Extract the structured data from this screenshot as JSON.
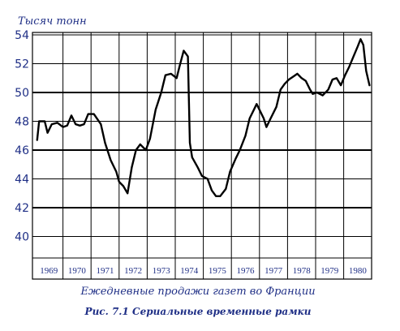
{
  "chart_data": {
    "type": "line",
    "title": "Рис. 7.1 Сериальные временные рамки",
    "subtitle": "Ежедневные продажи газет во Франции",
    "ylabel": "Тысяч тонн",
    "xlabel": "",
    "ylim": [
      38,
      54
    ],
    "yticks": [
      40,
      42,
      44,
      46,
      48,
      50,
      52,
      54
    ],
    "grid": true,
    "legend": "none",
    "categories": [
      "1969",
      "1970",
      "1971",
      "1972",
      "1973",
      "1974",
      "1975",
      "1976",
      "1977",
      "1978",
      "1979",
      "1980"
    ],
    "xlim": [
      1969,
      1981
    ],
    "series": [
      {
        "name": "",
        "color": "#000000",
        "points": [
          [
            1969.08,
            46.7
          ],
          [
            1969.15,
            48.0
          ],
          [
            1969.35,
            48.0
          ],
          [
            1969.45,
            47.2
          ],
          [
            1969.6,
            47.8
          ],
          [
            1969.8,
            47.9
          ],
          [
            1970.0,
            47.6
          ],
          [
            1970.15,
            47.7
          ],
          [
            1970.3,
            48.4
          ],
          [
            1970.45,
            47.8
          ],
          [
            1970.6,
            47.7
          ],
          [
            1970.75,
            47.8
          ],
          [
            1970.9,
            48.5
          ],
          [
            1971.1,
            48.5
          ],
          [
            1971.35,
            47.8
          ],
          [
            1971.5,
            46.5
          ],
          [
            1971.7,
            45.3
          ],
          [
            1971.9,
            44.5
          ],
          [
            1972.0,
            43.8
          ],
          [
            1972.15,
            43.5
          ],
          [
            1972.3,
            43.0
          ],
          [
            1972.45,
            44.8
          ],
          [
            1972.6,
            46.0
          ],
          [
            1972.75,
            46.4
          ],
          [
            1972.95,
            46.0
          ],
          [
            1973.1,
            46.8
          ],
          [
            1973.3,
            48.8
          ],
          [
            1973.5,
            50.0
          ],
          [
            1973.65,
            51.2
          ],
          [
            1973.85,
            51.3
          ],
          [
            1974.05,
            51.0
          ],
          [
            1974.15,
            51.8
          ],
          [
            1974.3,
            52.9
          ],
          [
            1974.45,
            52.5
          ],
          [
            1974.52,
            46.5
          ],
          [
            1974.6,
            45.5
          ],
          [
            1974.8,
            44.8
          ],
          [
            1974.95,
            44.2
          ],
          [
            1975.15,
            44.0
          ],
          [
            1975.3,
            43.2
          ],
          [
            1975.45,
            42.8
          ],
          [
            1975.6,
            42.8
          ],
          [
            1975.8,
            43.3
          ],
          [
            1975.95,
            44.5
          ],
          [
            1976.15,
            45.4
          ],
          [
            1976.3,
            46.0
          ],
          [
            1976.5,
            47.0
          ],
          [
            1976.65,
            48.2
          ],
          [
            1976.8,
            48.8
          ],
          [
            1976.9,
            49.2
          ],
          [
            1977.0,
            48.8
          ],
          [
            1977.15,
            48.2
          ],
          [
            1977.25,
            47.6
          ],
          [
            1977.4,
            48.2
          ],
          [
            1977.6,
            49.0
          ],
          [
            1977.75,
            50.2
          ],
          [
            1977.9,
            50.6
          ],
          [
            1978.05,
            50.9
          ],
          [
            1978.2,
            51.1
          ],
          [
            1978.35,
            51.3
          ],
          [
            1978.5,
            51.0
          ],
          [
            1978.65,
            50.8
          ],
          [
            1978.8,
            50.2
          ],
          [
            1978.9,
            49.9
          ],
          [
            1979.05,
            50.0
          ],
          [
            1979.25,
            49.8
          ],
          [
            1979.45,
            50.2
          ],
          [
            1979.6,
            50.9
          ],
          [
            1979.75,
            51.0
          ],
          [
            1979.9,
            50.5
          ],
          [
            1980.05,
            51.2
          ],
          [
            1980.2,
            51.8
          ],
          [
            1980.35,
            52.5
          ],
          [
            1980.5,
            53.2
          ],
          [
            1980.6,
            53.7
          ],
          [
            1980.7,
            53.3
          ],
          [
            1980.8,
            51.5
          ],
          [
            1980.92,
            50.5
          ]
        ]
      }
    ]
  }
}
